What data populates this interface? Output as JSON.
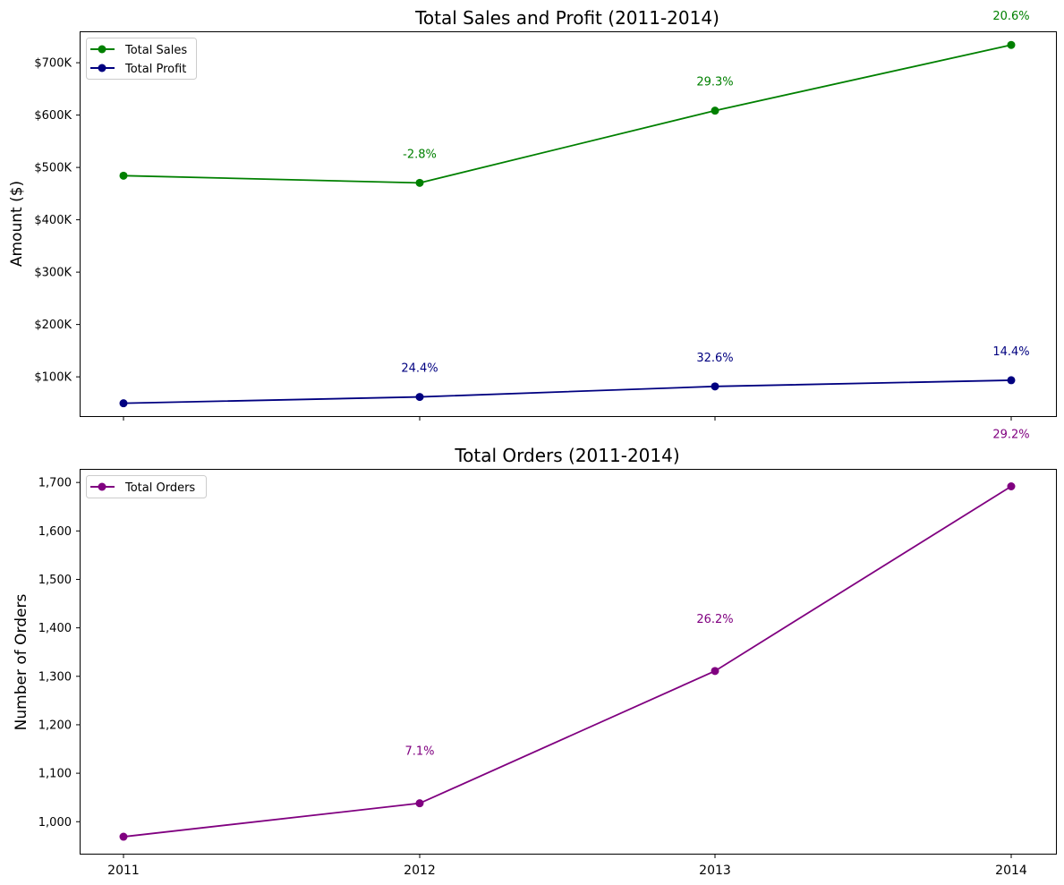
{
  "chart_data": [
    {
      "type": "line",
      "title": "Total Sales and Profit (2011-2014)",
      "xlabel": "",
      "ylabel": "Amount ($)",
      "x": [
        "2011",
        "2012",
        "2013",
        "2014"
      ],
      "ylim": [
        25000,
        760000
      ],
      "yticks": [
        100000,
        200000,
        300000,
        400000,
        500000,
        600000,
        700000
      ],
      "ytick_labels": [
        "$100K",
        "$200K",
        "$300K",
        "$400K",
        "$500K",
        "$600K",
        "$700K"
      ],
      "grid": false,
      "legend": "upper-left",
      "series": [
        {
          "name": "Total Sales",
          "color": "#008000",
          "values": [
            484247,
            470533,
            608474,
            733947
          ],
          "annotations": [
            "",
            "-2.8%",
            "29.3%",
            "20.6%"
          ]
        },
        {
          "name": "Total Profit",
          "color": "#000080",
          "values": [
            49544,
            61619,
            81726,
            93507
          ],
          "annotations": [
            "",
            "24.4%",
            "32.6%",
            "14.4%"
          ]
        }
      ]
    },
    {
      "type": "line",
      "title": "Total Orders (2011-2014)",
      "xlabel": "",
      "ylabel": "Number of Orders",
      "x": [
        "2011",
        "2012",
        "2013",
        "2014"
      ],
      "ylim": [
        934,
        1728
      ],
      "yticks": [
        1000,
        1100,
        1200,
        1300,
        1400,
        1500,
        1600,
        1700
      ],
      "ytick_labels": [
        "1,000",
        "1,100",
        "1,200",
        "1,300",
        "1,400",
        "1,500",
        "1,600",
        "1,700"
      ],
      "grid": false,
      "legend": "upper-left",
      "series": [
        {
          "name": "Total Orders",
          "color": "#800080",
          "values": [
            969,
            1038,
            1311,
            1692
          ],
          "annotations": [
            "",
            "7.1%",
            "26.2%",
            "29.2%"
          ]
        }
      ]
    }
  ]
}
